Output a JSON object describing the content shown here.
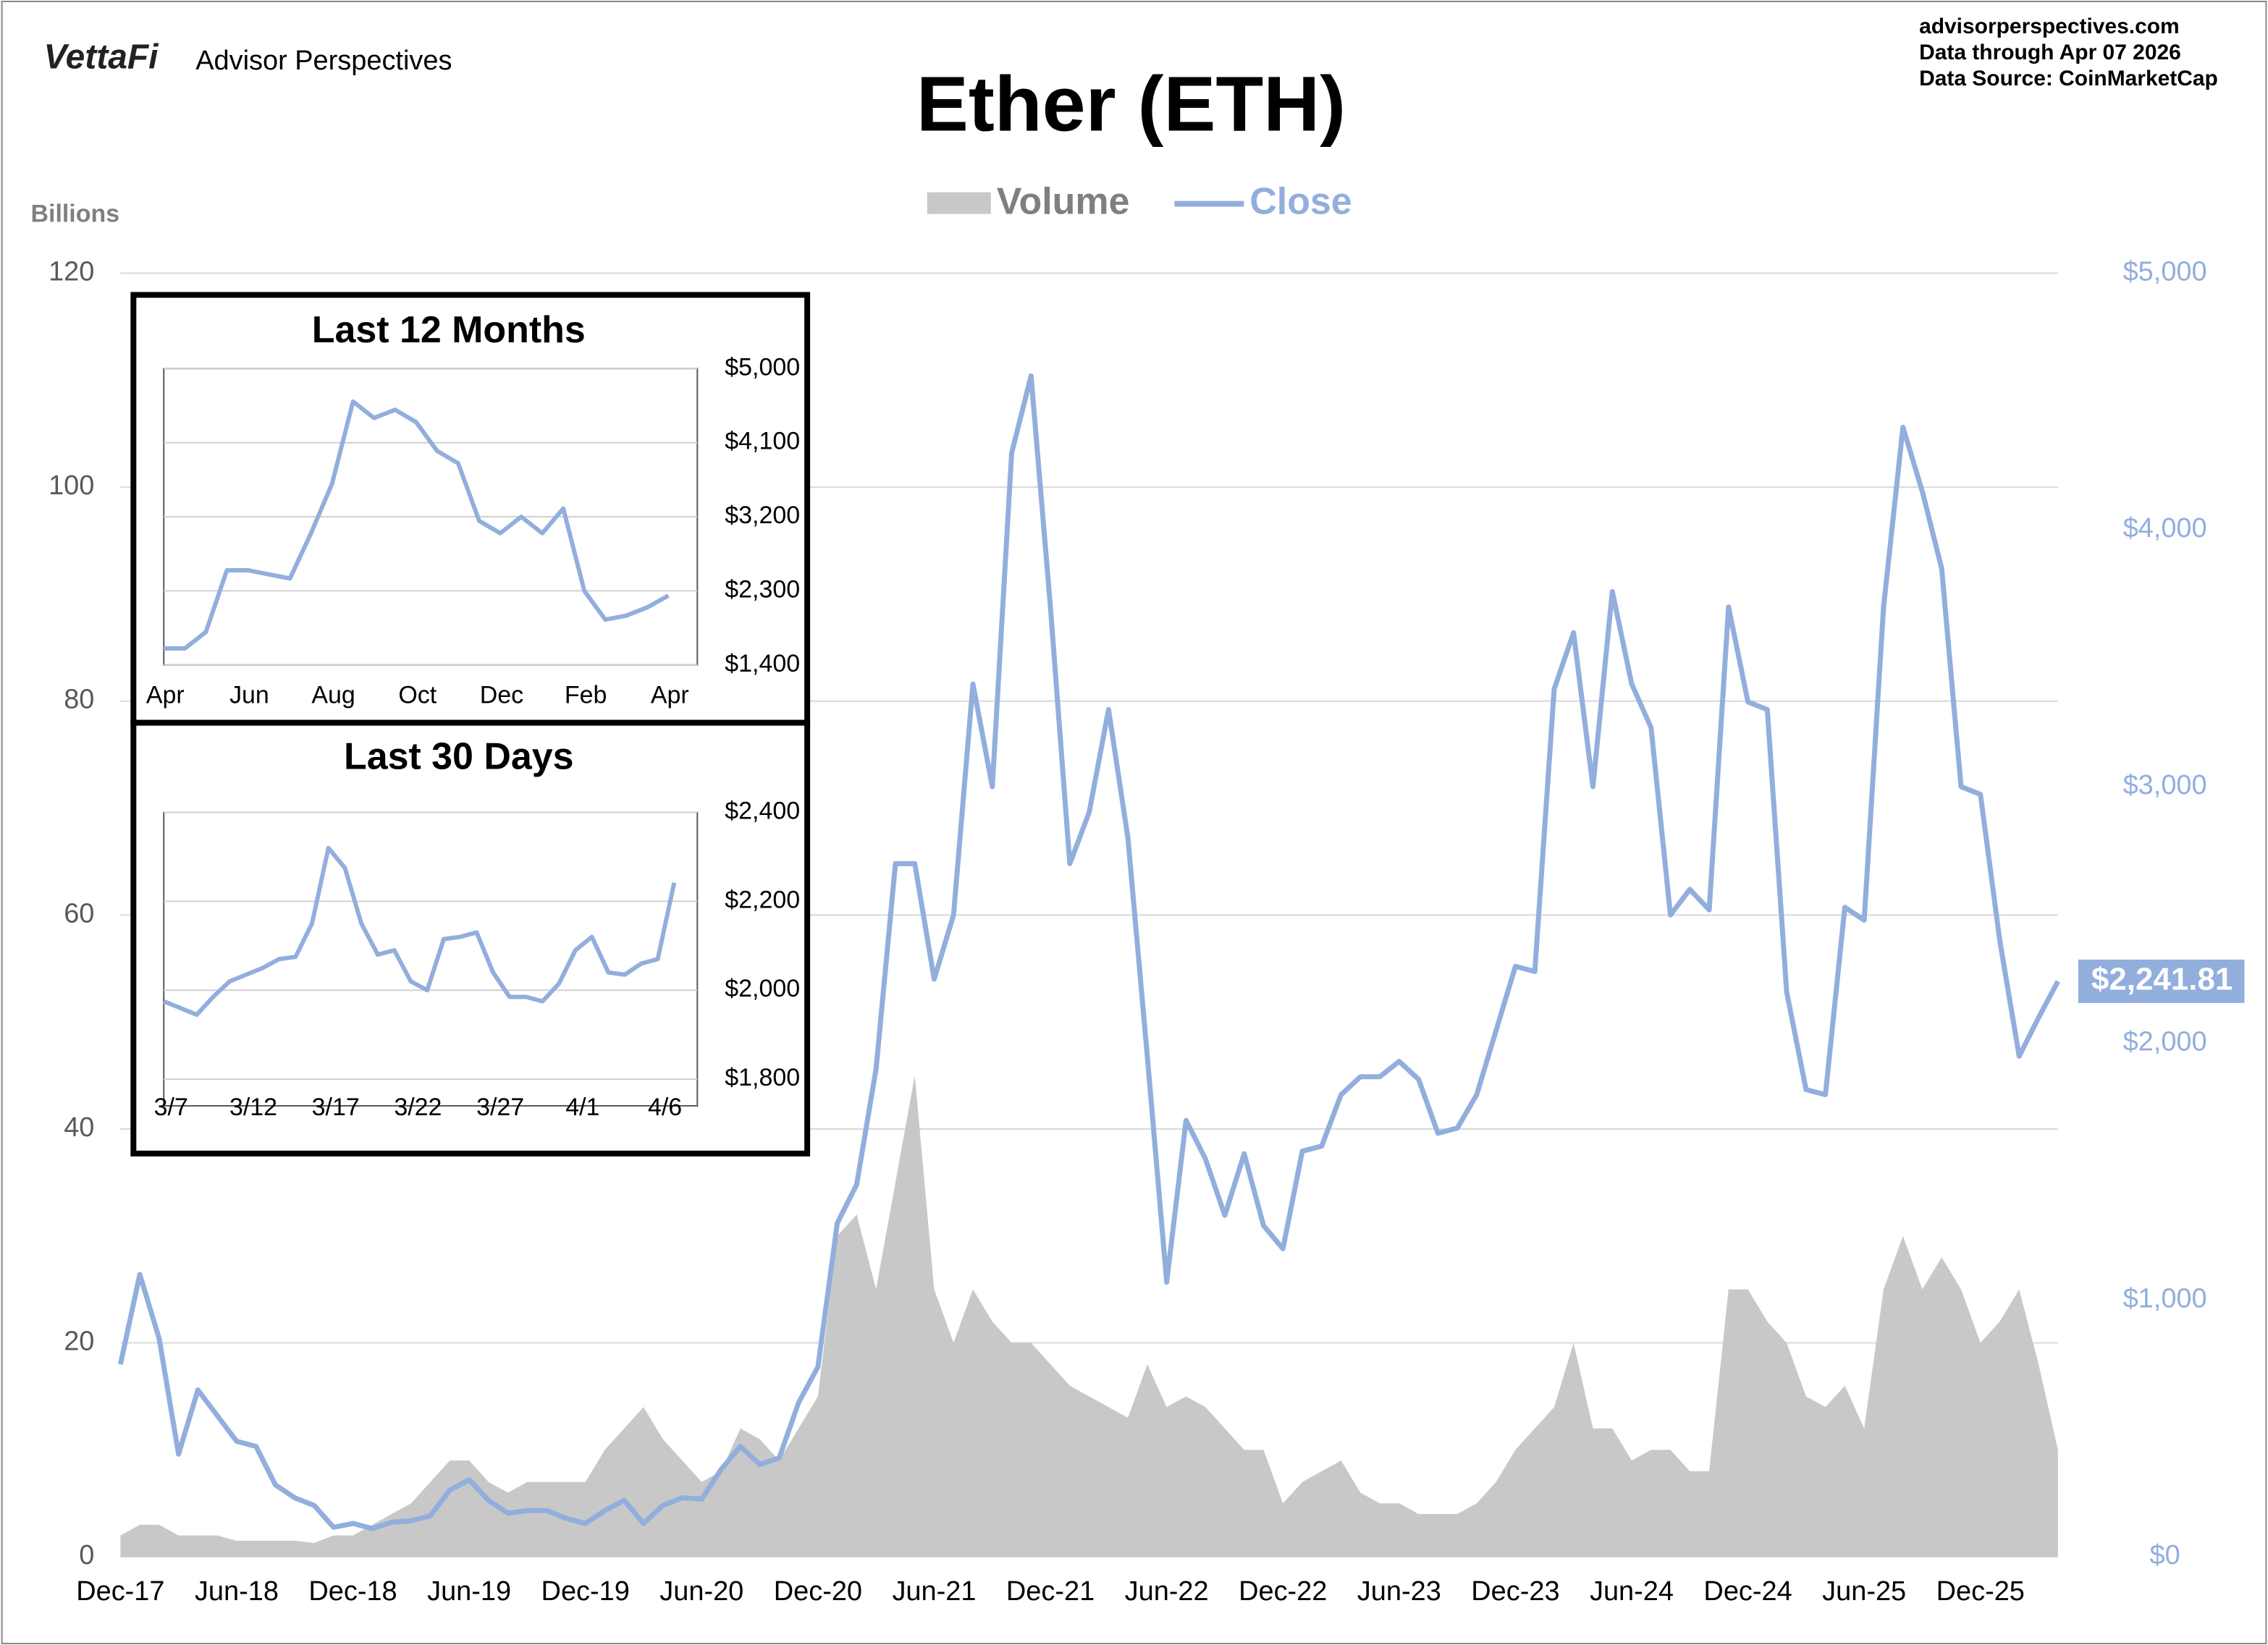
{
  "chart_data": [
    {
      "type": "combo",
      "brand": "VettaFi",
      "publisher": "Advisor Perspectives",
      "title": "Ether (ETH)",
      "source_lines": [
        "advisorperspectives.com",
        "Data through  Apr 07 2026",
        "Data Source:  CoinMarketCap"
      ],
      "y_label": "Billions",
      "categories": [
        "Dec-17",
        null,
        null,
        null,
        null,
        null,
        "Jun-18",
        null,
        null,
        null,
        null,
        null,
        "Dec-18",
        null,
        null,
        null,
        null,
        null,
        "Jun-19",
        null,
        null,
        null,
        null,
        null,
        "Dec-19",
        null,
        null,
        null,
        null,
        null,
        "Jun-20",
        null,
        null,
        null,
        null,
        null,
        "Dec-20",
        null,
        null,
        null,
        null,
        null,
        "Jun-21",
        null,
        null,
        null,
        null,
        null,
        "Dec-21",
        null,
        null,
        null,
        null,
        null,
        "Jun-22",
        null,
        null,
        null,
        null,
        null,
        "Dec-22",
        null,
        null,
        null,
        null,
        null,
        "Jun-23",
        null,
        null,
        null,
        null,
        null,
        "Dec-23",
        null,
        null,
        null,
        null,
        null,
        "Jun-24",
        null,
        null,
        null,
        null,
        null,
        "Dec-24",
        null,
        null,
        null,
        null,
        null,
        "Jun-25",
        null,
        null,
        null,
        null,
        null,
        "Dec-25",
        null,
        null,
        null,
        null
      ],
      "series": [
        {
          "name": "Volume",
          "color": "#c8c8c8",
          "values": [
            2,
            3,
            3,
            2,
            2,
            2,
            1.5,
            1.5,
            1.5,
            1.5,
            1.3,
            2,
            2,
            3,
            4,
            5,
            7,
            9,
            9,
            7,
            6,
            7,
            7,
            7,
            7,
            10,
            12,
            14,
            11,
            9,
            7,
            8,
            12,
            11,
            9,
            12,
            15,
            30,
            32,
            25,
            35,
            45,
            25,
            20,
            25,
            22,
            20,
            20,
            18,
            16,
            15,
            14,
            13,
            18,
            14,
            15,
            14,
            12,
            10,
            10,
            5,
            7,
            8,
            9,
            6,
            5,
            5,
            4,
            4,
            4,
            5,
            7,
            10,
            12,
            14,
            20,
            12,
            12,
            9,
            10,
            10,
            8,
            8,
            25,
            25,
            22,
            20,
            15,
            14,
            16,
            12,
            25,
            30,
            25,
            28,
            25,
            20,
            22,
            25,
            18,
            10
          ]
        },
        {
          "name": "Close",
          "color": "#92aedd",
          "axis": "y2",
          "values": [
            750,
            1100,
            850,
            400,
            650,
            550,
            450,
            430,
            280,
            230,
            200,
            115,
            130,
            110,
            135,
            140,
            160,
            260,
            300,
            220,
            170,
            180,
            180,
            150,
            130,
            180,
            220,
            130,
            200,
            230,
            225,
            340,
            430,
            360,
            385,
            600,
            740,
            1300,
            1450,
            1900,
            2700,
            2700,
            2250,
            2500,
            3400,
            3000,
            4300,
            4600,
            3700,
            2700,
            2900,
            3300,
            2800,
            1950,
            1070,
            1700,
            1550,
            1330,
            1570,
            1290,
            1200,
            1580,
            1600,
            1800,
            1870,
            1870,
            1930,
            1860,
            1650,
            1670,
            1800,
            2050,
            2300,
            2280,
            3380,
            3600,
            3000,
            3760,
            3400,
            3230,
            2500,
            2600,
            2520,
            3700,
            3330,
            3300,
            2200,
            1820,
            1800,
            2530,
            2480,
            3700,
            4400,
            4150,
            3850,
            3000,
            2970,
            2400,
            1950,
            2100,
            2241.81
          ],
          "value_labels": [
            null,
            null,
            null,
            null,
            null,
            null,
            null,
            null,
            null,
            null,
            null,
            null,
            null,
            null,
            null,
            null,
            null,
            null,
            null,
            null,
            null,
            null,
            null,
            null,
            null,
            null,
            null,
            null,
            null,
            null,
            null,
            null,
            null,
            null,
            null,
            null,
            null,
            null,
            null,
            null,
            null,
            null,
            null,
            null,
            null,
            null,
            null,
            null,
            null,
            null,
            null,
            null,
            null,
            null,
            null,
            null,
            null,
            null,
            null,
            null,
            null,
            null,
            null,
            null,
            null,
            null,
            null,
            null,
            null,
            null,
            null,
            null,
            null,
            null,
            null,
            null,
            null,
            null,
            null,
            null,
            null,
            null,
            null,
            null,
            null,
            null,
            null,
            null,
            null,
            null,
            null,
            null,
            null,
            null,
            null,
            null,
            null,
            null,
            null,
            null,
            "$2,241.81"
          ]
        }
      ],
      "ylim": [
        0,
        120
      ],
      "yticks": [
        0,
        20,
        40,
        60,
        80,
        100,
        120
      ],
      "y2lim": [
        0,
        5000
      ],
      "y2ticks": [
        {
          "value": 0,
          "label": "$0"
        },
        {
          "value": 1000,
          "label": "$1,000"
        },
        {
          "value": 2000,
          "label": "$2,000"
        },
        {
          "value": 3000,
          "label": "$3,000"
        },
        {
          "value": 4000,
          "label": "$4,000"
        },
        {
          "value": 5000,
          "label": "$5,000"
        }
      ],
      "grid": true,
      "legend": "top"
    },
    {
      "type": "line",
      "title": "Last 12 Months",
      "categories": [
        "Apr",
        null,
        null,
        null,
        "Jun",
        null,
        null,
        null,
        "Aug",
        null,
        null,
        null,
        "Oct",
        null,
        null,
        null,
        "Dec",
        null,
        null,
        null,
        "Feb",
        null,
        null,
        null,
        "Apr"
      ],
      "values": [
        1600,
        1600,
        1800,
        2550,
        2550,
        2500,
        2450,
        3000,
        3600,
        4600,
        4400,
        4500,
        4350,
        4000,
        3850,
        3150,
        3000,
        3200,
        3000,
        3300,
        2300,
        1950,
        2000,
        2100,
        2241.81
      ],
      "color": "#92aedd",
      "ylim": [
        1400,
        5000
      ],
      "yticks": [
        {
          "value": 1400,
          "label": "$1,400"
        },
        {
          "value": 2300,
          "label": "$2,300"
        },
        {
          "value": 3200,
          "label": "$3,200"
        },
        {
          "value": 4100,
          "label": "$4,100"
        },
        {
          "value": 5000,
          "label": "$5,000"
        }
      ],
      "grid": true
    },
    {
      "type": "line",
      "title": "Last 30 Days",
      "categories": [
        "3/7",
        null,
        null,
        null,
        null,
        "3/12",
        null,
        null,
        null,
        null,
        "3/17",
        null,
        null,
        null,
        null,
        "3/22",
        null,
        null,
        null,
        null,
        "3/27",
        null,
        null,
        null,
        null,
        "4/1",
        null,
        null,
        null,
        null,
        "4/6",
        null
      ],
      "values": [
        1975,
        1960,
        1945,
        1985,
        2020,
        2035,
        2050,
        2070,
        2075,
        2150,
        2320,
        2275,
        2150,
        2080,
        2090,
        2020,
        2000,
        2115,
        2120,
        2130,
        2040,
        1985,
        1985,
        1975,
        2015,
        2090,
        2120,
        2040,
        2035,
        2060,
        2070,
        2241.81
      ],
      "color": "#92aedd",
      "ylim": [
        1740,
        2400
      ],
      "yticks": [
        {
          "value": 1800,
          "label": "$1,800"
        },
        {
          "value": 2000,
          "label": "$2,000"
        },
        {
          "value": 2200,
          "label": "$2,200"
        },
        {
          "value": 2400,
          "label": "$2,400"
        }
      ],
      "grid": true
    }
  ]
}
